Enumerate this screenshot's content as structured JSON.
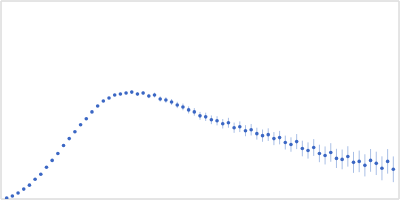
{
  "chart_data": {
    "type": "scatter",
    "color": "#3b67c4",
    "marker": "circle",
    "grid": true,
    "tick_labels": false,
    "xlim": [
      0,
      3.5
    ],
    "ylim": [
      0,
      2
    ],
    "xticks": [
      1
    ],
    "yticks": [
      1
    ],
    "x": [
      0.05,
      0.1,
      0.15,
      0.2,
      0.25,
      0.3,
      0.35,
      0.4,
      0.45,
      0.5,
      0.55,
      0.6,
      0.65,
      0.7,
      0.75,
      0.8,
      0.85,
      0.9,
      0.95,
      1.0,
      1.05,
      1.1,
      1.15,
      1.2,
      1.25,
      1.3,
      1.35,
      1.4,
      1.45,
      1.5,
      1.55,
      1.6,
      1.65,
      1.7,
      1.75,
      1.8,
      1.85,
      1.9,
      1.95,
      2.0,
      2.05,
      2.1,
      2.15,
      2.2,
      2.25,
      2.3,
      2.35,
      2.4,
      2.45,
      2.5,
      2.55,
      2.6,
      2.65,
      2.7,
      2.75,
      2.8,
      2.85,
      2.9,
      2.95,
      3.0,
      3.05,
      3.1,
      3.15,
      3.2,
      3.25,
      3.3,
      3.35,
      3.4,
      3.45
    ],
    "values": [
      0.01,
      0.03,
      0.06,
      0.1,
      0.14,
      0.2,
      0.25,
      0.32,
      0.39,
      0.46,
      0.54,
      0.61,
      0.68,
      0.75,
      0.81,
      0.88,
      0.94,
      0.99,
      1.02,
      1.05,
      1.06,
      1.07,
      1.08,
      1.06,
      1.07,
      1.04,
      1.05,
      1.01,
      1.0,
      0.98,
      0.95,
      0.93,
      0.9,
      0.88,
      0.84,
      0.83,
      0.8,
      0.79,
      0.76,
      0.77,
      0.72,
      0.73,
      0.69,
      0.7,
      0.66,
      0.64,
      0.65,
      0.61,
      0.62,
      0.57,
      0.55,
      0.58,
      0.51,
      0.49,
      0.52,
      0.46,
      0.44,
      0.47,
      0.41,
      0.4,
      0.43,
      0.37,
      0.38,
      0.34,
      0.39,
      0.36,
      0.31,
      0.38,
      0.3
    ],
    "errors": [
      0.005,
      0.005,
      0.005,
      0.005,
      0.005,
      0.005,
      0.005,
      0.005,
      0.005,
      0.005,
      0.005,
      0.005,
      0.005,
      0.005,
      0.005,
      0.006,
      0.007,
      0.008,
      0.009,
      0.01,
      0.012,
      0.014,
      0.016,
      0.018,
      0.02,
      0.022,
      0.024,
      0.026,
      0.028,
      0.03,
      0.032,
      0.034,
      0.036,
      0.038,
      0.04,
      0.042,
      0.044,
      0.046,
      0.048,
      0.05,
      0.052,
      0.054,
      0.056,
      0.058,
      0.06,
      0.062,
      0.064,
      0.066,
      0.068,
      0.07,
      0.073,
      0.076,
      0.079,
      0.082,
      0.085,
      0.088,
      0.091,
      0.094,
      0.097,
      0.1,
      0.103,
      0.106,
      0.109,
      0.112,
      0.115,
      0.118,
      0.121,
      0.124,
      0.13
    ]
  }
}
